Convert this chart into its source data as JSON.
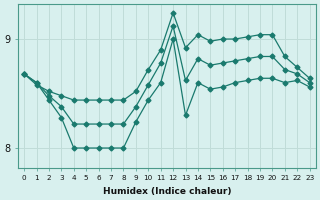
{
  "xlabel": "Humidex (Indice chaleur)",
  "x": [
    0,
    1,
    2,
    3,
    4,
    5,
    6,
    7,
    8,
    9,
    10,
    11,
    12,
    13,
    14,
    15,
    16,
    17,
    18,
    19,
    20,
    21,
    22,
    23
  ],
  "y_main": [
    8.68,
    8.6,
    8.48,
    8.38,
    8.22,
    8.22,
    8.22,
    8.22,
    8.22,
    8.38,
    8.58,
    8.78,
    9.12,
    8.62,
    8.82,
    8.76,
    8.78,
    8.8,
    8.82,
    8.84,
    8.84,
    8.72,
    8.68,
    8.6
  ],
  "y_upper": [
    8.68,
    8.58,
    8.52,
    8.48,
    8.44,
    8.44,
    8.44,
    8.44,
    8.44,
    8.52,
    8.72,
    8.9,
    9.24,
    8.92,
    9.04,
    8.98,
    9.0,
    9.0,
    9.02,
    9.04,
    9.04,
    8.84,
    8.74,
    8.64
  ],
  "y_lower": [
    8.68,
    8.6,
    8.44,
    8.28,
    8.0,
    8.0,
    8.0,
    8.0,
    8.0,
    8.24,
    8.44,
    8.6,
    9.0,
    8.3,
    8.6,
    8.54,
    8.56,
    8.6,
    8.62,
    8.64,
    8.64,
    8.6,
    8.62,
    8.56
  ],
  "line_color": "#1a7a6e",
  "bg_color": "#d8f0ee",
  "grid_color": "#c0dcd8",
  "ylim_min": 7.82,
  "ylim_max": 9.32,
  "yticks": [
    8,
    9
  ],
  "xticks": [
    0,
    1,
    2,
    3,
    4,
    5,
    6,
    7,
    8,
    9,
    10,
    11,
    12,
    13,
    14,
    15,
    16,
    17,
    18,
    19,
    20,
    21,
    22,
    23
  ]
}
